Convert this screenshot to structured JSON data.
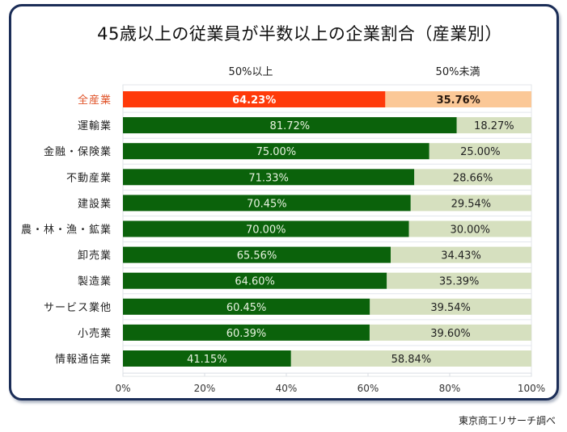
{
  "chart_data": {
    "type": "bar",
    "orientation": "horizontal",
    "stacked": "percent",
    "title": "45歳以上の従業員が半数以上の企業割合（産業別）",
    "legend": [
      "50%以上",
      "50%未満"
    ],
    "legend_placement": "top",
    "categories": [
      "全産業",
      "運輸業",
      "金融・保険業",
      "不動産業",
      "建設業",
      "農・林・漁・鉱業",
      "卸売業",
      "製造業",
      "サービス業他",
      "小売業",
      "情報通信業"
    ],
    "series": [
      {
        "name": "50%以上",
        "values": [
          64.23,
          81.72,
          75.0,
          71.33,
          70.45,
          70.0,
          65.56,
          64.6,
          60.45,
          60.39,
          41.15
        ],
        "labels": [
          "64.23%",
          "81.72%",
          "75.00%",
          "71.33%",
          "70.45%",
          "70.00%",
          "65.56%",
          "64.60%",
          "60.45%",
          "60.39%",
          "41.15%"
        ]
      },
      {
        "name": "50%未満",
        "values": [
          35.76,
          18.27,
          25.0,
          28.66,
          29.54,
          30.0,
          34.43,
          35.39,
          39.54,
          39.6,
          58.84
        ],
        "labels": [
          "35.76%",
          "18.27%",
          "25.00%",
          "28.66%",
          "29.54%",
          "30.00%",
          "34.43%",
          "35.39%",
          "39.54%",
          "39.60%",
          "58.84%"
        ]
      }
    ],
    "highlight_category": "全産業",
    "x_ticks": [
      "0%",
      "20%",
      "40%",
      "60%",
      "80%",
      "100%"
    ],
    "x_tick_values": [
      0,
      20,
      40,
      60,
      80,
      100
    ],
    "xlim": [
      0,
      100
    ],
    "grid": false,
    "source": "東京商工リサーチ調べ"
  },
  "colors": {
    "frame": "#1b2d57",
    "highlight_primary": "#ff3a0a",
    "highlight_secondary": "#fbc897",
    "highlight_label": "#e0542a",
    "primary": "#0b620b",
    "secondary": "#d6e0bf",
    "primary_text": "#e8f3e0",
    "secondary_text": "#222222"
  }
}
